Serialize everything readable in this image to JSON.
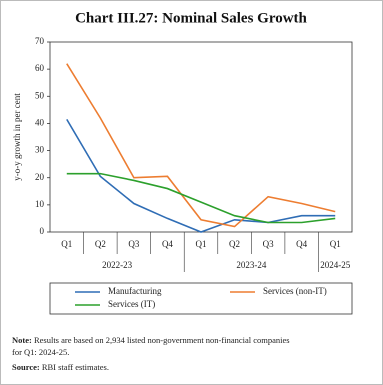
{
  "chart_data": {
    "type": "line",
    "title": "Chart III.27: Nominal Sales Growth",
    "y_label": "y-o-y growth in per cent",
    "groups": [
      {
        "name": "2022-23",
        "categories": [
          "Q1",
          "Q2",
          "Q3",
          "Q4"
        ]
      },
      {
        "name": "2023-24",
        "categories": [
          "Q1",
          "Q2",
          "Q3",
          "Q4"
        ]
      },
      {
        "name": "2024-25",
        "categories": [
          "Q1"
        ]
      }
    ],
    "series": [
      {
        "name": "Manufacturing",
        "color": "#2f6db5",
        "values": [
          41.5,
          20.5,
          10.5,
          5,
          0,
          4.5,
          3.5,
          6,
          6
        ]
      },
      {
        "name": "Services (non-IT)",
        "color": "#ed7d31",
        "values": [
          62,
          42,
          20,
          20.5,
          4.5,
          2,
          13,
          10.5,
          7.5
        ]
      },
      {
        "name": "Services (IT)",
        "color": "#2ca02c",
        "values": [
          21.5,
          21.5,
          19,
          16,
          11,
          6,
          3.5,
          3.5,
          5
        ]
      }
    ],
    "ylim": [
      0,
      70
    ],
    "yticks": [
      0,
      10,
      20,
      30,
      40,
      50,
      60,
      70
    ],
    "grid": false,
    "legend": "bottom",
    "note_label": "Note:",
    "note": "Results are based on 2,934 listed non-government non-financial companies",
    "note_line2": "for Q1: 2024-25.",
    "source_label": "Source:",
    "source": "RBI staff estimates."
  }
}
